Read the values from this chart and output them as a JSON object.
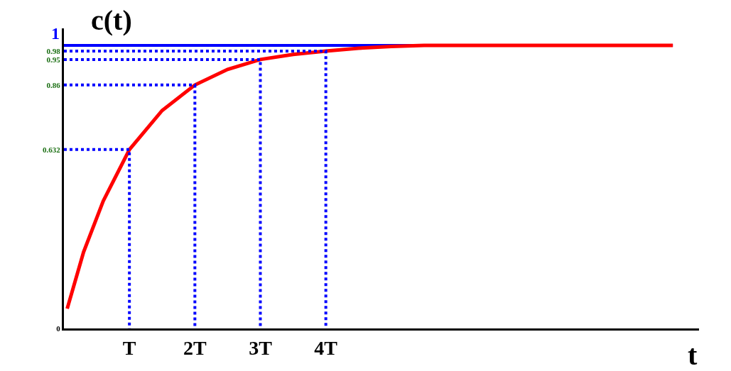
{
  "chart_data": {
    "type": "line",
    "xlabel": "t",
    "ylabel": "c(t)",
    "xlim": [
      0,
      9.7
    ],
    "ylim": [
      0,
      1.06
    ],
    "xticks": [
      {
        "value": 1,
        "label": "T"
      },
      {
        "value": 2,
        "label": "2T"
      },
      {
        "value": 3,
        "label": "3T"
      },
      {
        "value": 4,
        "label": "4T"
      }
    ],
    "yticks": [
      0,
      0.632,
      0.86,
      0.95,
      0.98
    ],
    "series": [
      {
        "color": "#ff0000",
        "x": [
          0.05,
          0.3,
          0.6,
          1,
          1.5,
          2,
          2.5,
          3,
          3.5,
          4,
          4.5,
          5,
          5.5,
          9.3
        ],
        "values": [
          0.07,
          0.27,
          0.45,
          0.632,
          0.77,
          0.86,
          0.915,
          0.95,
          0.968,
          0.98,
          0.99,
          0.996,
          1,
          1
        ]
      },
      {
        "color": "#0000ff",
        "line_style": "dotted",
        "x": [
          0,
          1,
          1,
          null,
          0,
          2,
          2,
          null,
          0,
          3,
          3,
          null,
          0,
          4,
          4
        ],
        "values": [
          0.632,
          0.632,
          0,
          null,
          0.86,
          0.86,
          0,
          null,
          0.95,
          0.95,
          0,
          null,
          0.98,
          0.98,
          0
        ]
      }
    ],
    "ref_lines": [
      {
        "axis": "y",
        "value": 1,
        "color": "#0000ff",
        "label": "1"
      }
    ]
  }
}
